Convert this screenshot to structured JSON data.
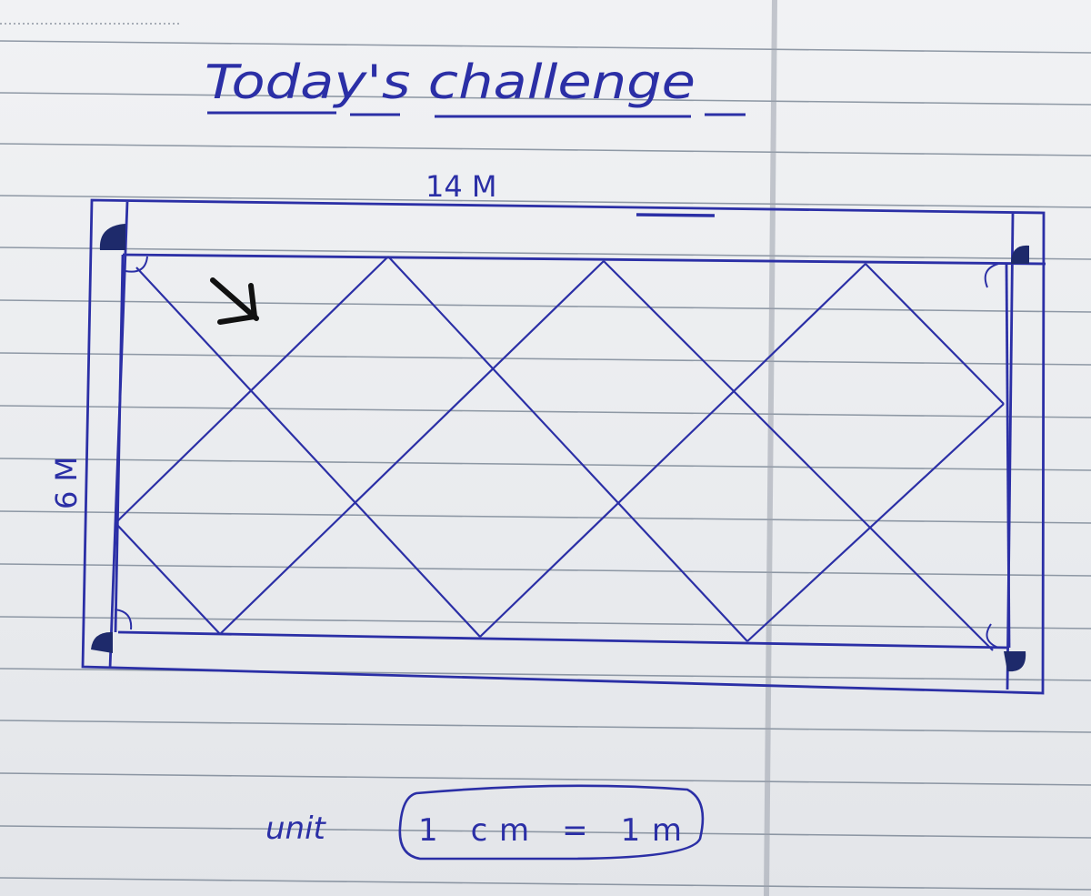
{
  "title": "Today's challenge",
  "width_label": "14 M",
  "height_label": "6 M",
  "unit": {
    "label": "unit",
    "value": "1 cm = 1m"
  },
  "colors": {
    "ink": "#2b2fa6",
    "paper": "#eceef0",
    "rule_line": "#6f7c8c",
    "arrow": "#111111"
  },
  "icons": {
    "corner_marker": "filled-quarter-circle",
    "pointer": "south-east-arrow"
  }
}
